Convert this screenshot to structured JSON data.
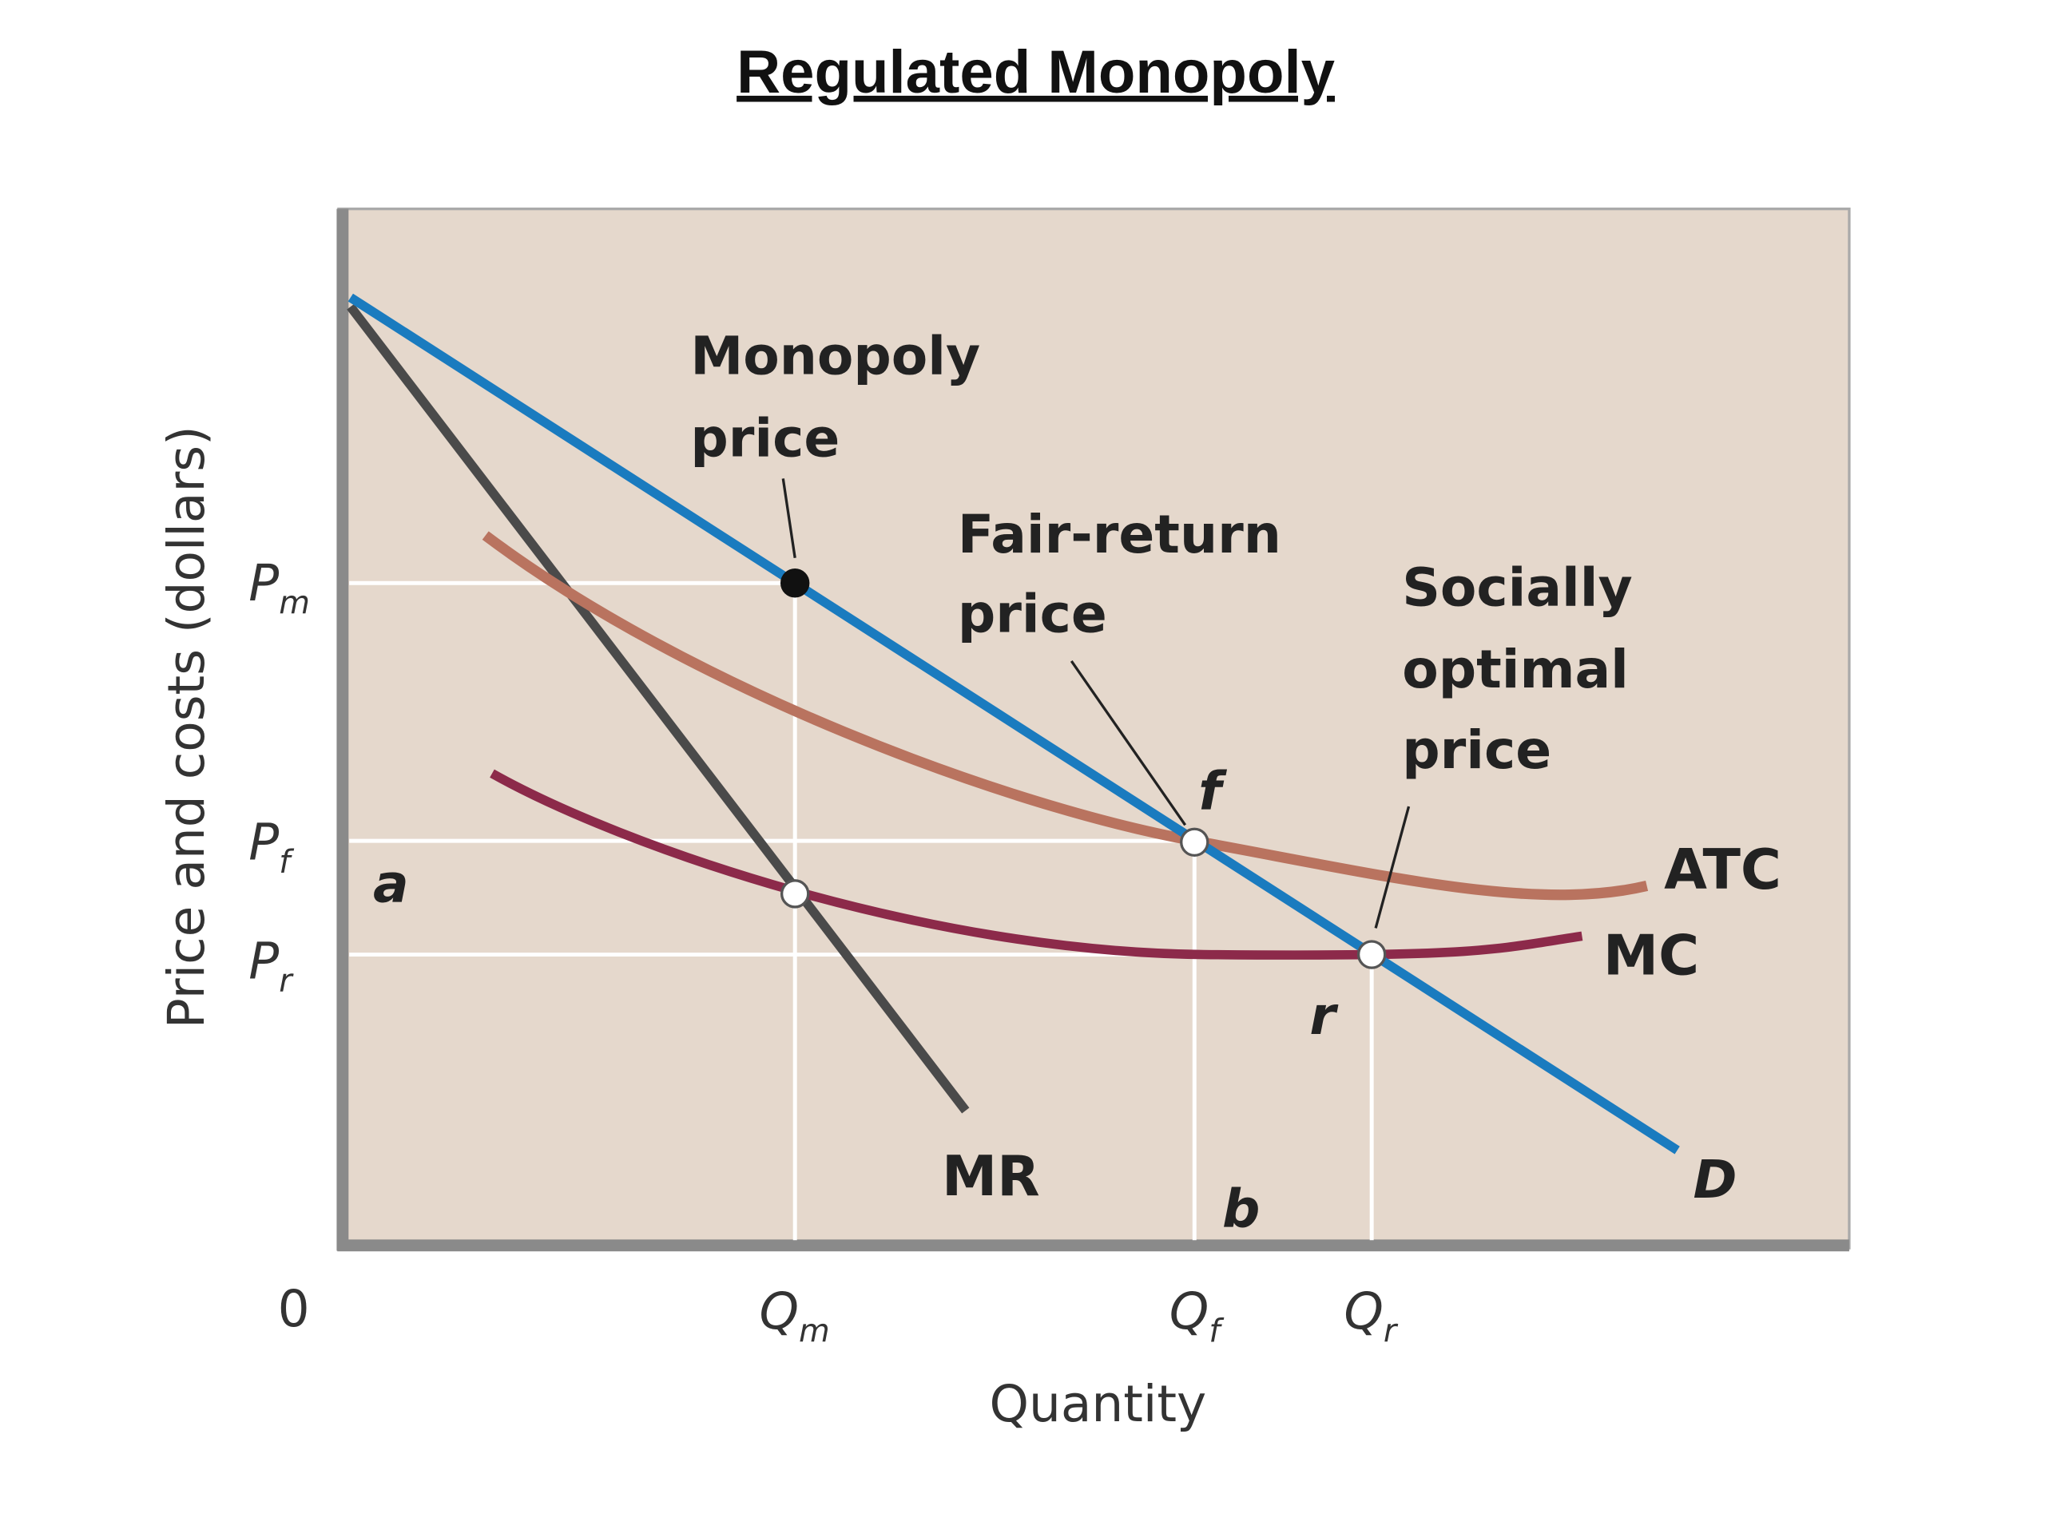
{
  "title": "Regulated Monopoly",
  "y_axis_label": "Price and costs (dollars)",
  "x_axis_label": "Quantity",
  "y_ticks": [
    {
      "main": "P",
      "sub": "m"
    },
    {
      "main": "P",
      "sub": "f"
    },
    {
      "main": "P",
      "sub": "r"
    }
  ],
  "x_ticks": [
    {
      "main": "0"
    },
    {
      "main": "Q",
      "sub": "m"
    },
    {
      "main": "Q",
      "sub": "f"
    },
    {
      "main": "Q",
      "sub": "r"
    }
  ],
  "annotations": [
    {
      "lines": [
        "Monopoly",
        "price"
      ]
    },
    {
      "lines": [
        "Fair-return",
        "price"
      ]
    },
    {
      "lines": [
        "Socially",
        "optimal",
        "price"
      ]
    }
  ],
  "curve_labels": {
    "atc": "ATC",
    "mc": "MC",
    "mr": "MR",
    "demand": "D"
  },
  "point_labels": {
    "f": "f",
    "r": "r",
    "a": "a",
    "b": "b"
  }
}
